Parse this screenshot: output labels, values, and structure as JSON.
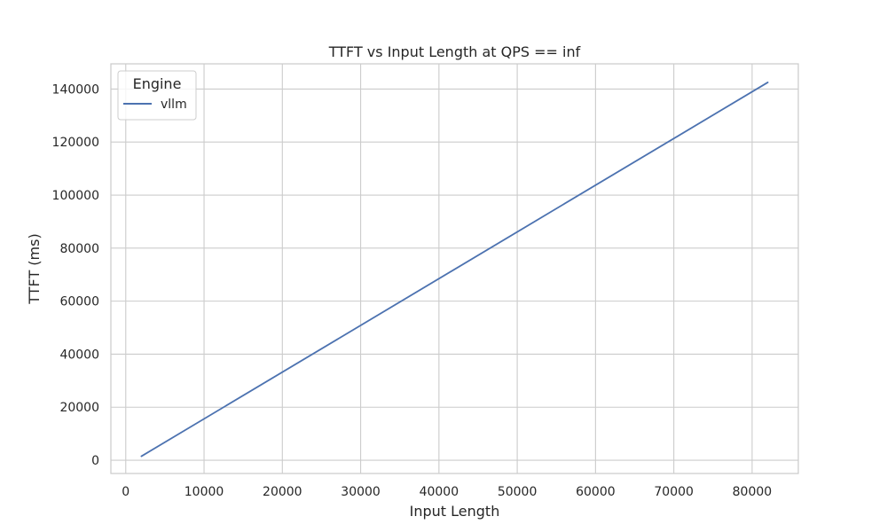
{
  "chart_data": {
    "type": "line",
    "title": "TTFT vs Input Length at QPS == inf",
    "xlabel": "Input Length",
    "ylabel": "TTFT (ms)",
    "xlim": [
      -1900,
      85900
    ],
    "ylim": [
      -5000,
      149500
    ],
    "xticks": [
      0,
      10000,
      20000,
      30000,
      40000,
      50000,
      60000,
      70000,
      80000
    ],
    "yticks": [
      0,
      20000,
      40000,
      60000,
      80000,
      100000,
      120000,
      140000
    ],
    "xtick_labels": [
      "0",
      "10000",
      "20000",
      "30000",
      "40000",
      "50000",
      "60000",
      "70000",
      "80000"
    ],
    "ytick_labels": [
      "0",
      "20000",
      "40000",
      "60000",
      "80000",
      "100000",
      "120000",
      "140000"
    ],
    "grid": true,
    "legend": {
      "title": "Engine",
      "placement": "top-left"
    },
    "series": [
      {
        "name": "vllm",
        "color": "#4c72b0",
        "x": [
          2000,
          82000
        ],
        "y": [
          1500,
          142500
        ]
      }
    ]
  }
}
